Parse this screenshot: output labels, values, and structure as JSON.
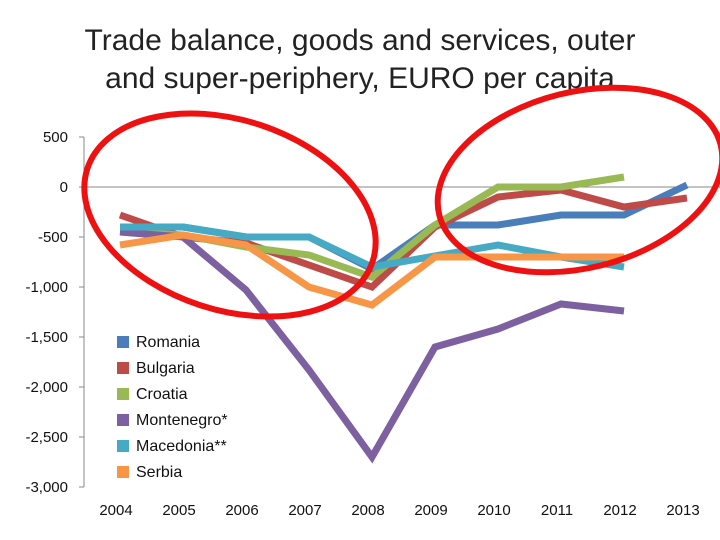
{
  "chart_data": {
    "type": "line",
    "title_lines": [
      "Trade balance, goods and services, outer",
      "and super-periphery, EURO per capita"
    ],
    "x": [
      "2004",
      "2005",
      "2006",
      "2007",
      "2008",
      "2009",
      "2010",
      "2011",
      "2012",
      "2013"
    ],
    "ylim": [
      -3000,
      500
    ],
    "yticks": [
      500,
      0,
      -500,
      -1000,
      -1500,
      -2000,
      -2500,
      -3000
    ],
    "ytick_labels": [
      "500",
      "0",
      "-500",
      "-1,000",
      "-1,500",
      "-2,000",
      "-2,500",
      "-3,000"
    ],
    "grid": false,
    "legend_position": "lower-left inside",
    "series": [
      {
        "name": "Romania",
        "color": "#4a7ebb",
        "values": [
          -400,
          -400,
          -500,
          -500,
          -820,
          -380,
          -380,
          -280,
          -280,
          20
        ]
      },
      {
        "name": "Bulgaria",
        "color": "#be4b48",
        "values": [
          -280,
          -500,
          -560,
          -780,
          -1000,
          -400,
          -100,
          -30,
          -200,
          -110
        ]
      },
      {
        "name": "Croatia",
        "color": "#98b954",
        "values": [
          -450,
          -480,
          -600,
          -680,
          -900,
          -380,
          0,
          0,
          100,
          null
        ]
      },
      {
        "name": "Montenegro*",
        "color": "#7d60a0",
        "values": [
          -450,
          -500,
          -1030,
          -1830,
          -2700,
          -1600,
          -1420,
          -1170,
          -1240,
          null
        ]
      },
      {
        "name": "Macedonia**",
        "color": "#46aac5",
        "values": [
          -400,
          -400,
          -500,
          -500,
          -800,
          -690,
          -580,
          -700,
          -800,
          null
        ]
      },
      {
        "name": "Serbia",
        "color": "#f79646",
        "values": [
          -580,
          -480,
          -580,
          -1000,
          -1180,
          -700,
          -700,
          -700,
          -700,
          null
        ]
      }
    ],
    "annotations": [
      {
        "shape": "ellipse",
        "color": "#ee1111",
        "description": "red circle around 2004-2008"
      },
      {
        "shape": "ellipse",
        "color": "#ee1111",
        "description": "red circle around 2009-2013"
      }
    ]
  }
}
